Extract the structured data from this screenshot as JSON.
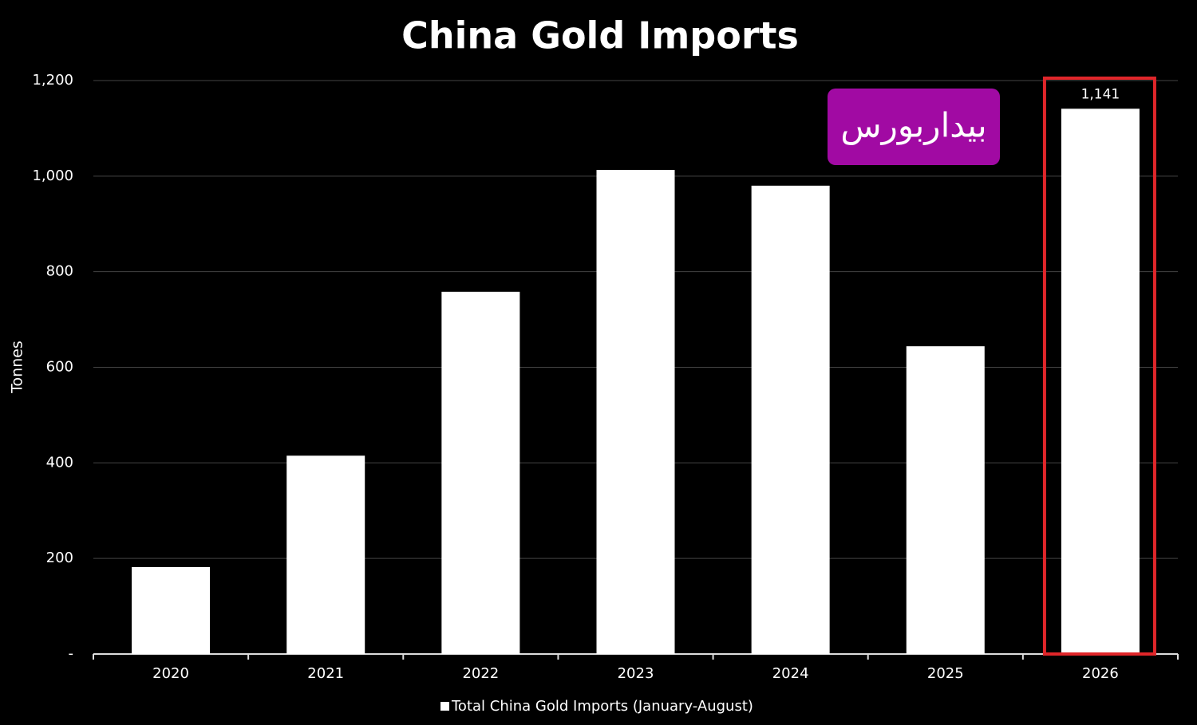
{
  "chart_data": {
    "type": "bar",
    "title": "China Gold Imports",
    "y_label": "Tonnes",
    "annotation": "بیداربورس",
    "categories": [
      "2020",
      "2021",
      "2022",
      "2023",
      "2024",
      "2025",
      "2026"
    ],
    "series": [
      {
        "name": "Total China Gold Imports (January-August)",
        "color": "#ffffff",
        "values": [
          182,
          415,
          758,
          1013,
          980,
          644,
          1141
        ],
        "value_labels": [
          null,
          null,
          null,
          null,
          null,
          null,
          "1,141"
        ]
      }
    ],
    "ylim": [
      0,
      1200
    ],
    "yticks": [
      {
        "value": 0,
        "label": "-"
      },
      200,
      400,
      600,
      800,
      {
        "value": 1000,
        "label": "1,000"
      },
      {
        "value": 1200,
        "label": "1,200"
      }
    ],
    "grid": true
  }
}
